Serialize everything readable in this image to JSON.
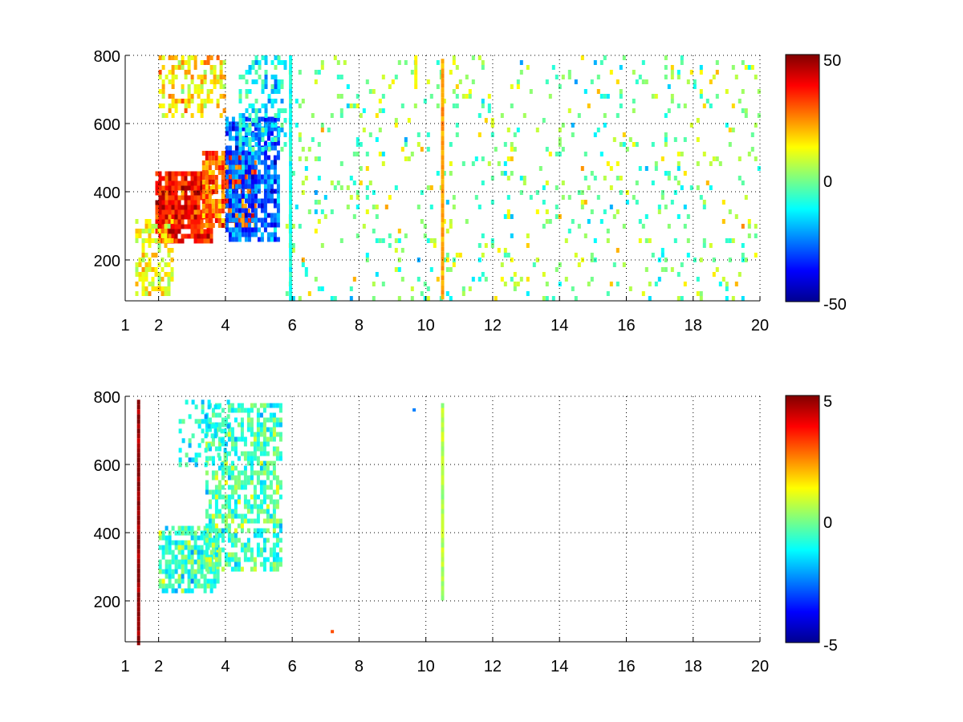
{
  "figure": {
    "background": "#ffffff"
  },
  "colormap": "jet",
  "chart_data": [
    {
      "type": "heatmap",
      "name": "top-panel",
      "title": "",
      "xlabel": "",
      "ylabel": "",
      "xlim": [
        1,
        20
      ],
      "ylim": [
        80,
        800
      ],
      "x_ticks": [
        1,
        2,
        4,
        6,
        8,
        10,
        12,
        14,
        16,
        18,
        20
      ],
      "x_tick_labels": [
        "1",
        "2",
        "4",
        "6",
        "8",
        "10",
        "12",
        "14",
        "16",
        "18",
        "20"
      ],
      "y_ticks": [
        200,
        400,
        600,
        800
      ],
      "y_tick_labels": [
        "200",
        "400",
        "600",
        "800"
      ],
      "grid": true,
      "grid_style": "dotted",
      "colorbar": {
        "min": -50,
        "max": 50,
        "tick_labels": [
          "50",
          "0",
          "-50"
        ],
        "ticks": [
          50,
          0,
          -50
        ]
      },
      "clusters": [
        {
          "x": [
            1.9,
            3.6
          ],
          "y": [
            260,
            460
          ],
          "value": 35,
          "spread": 12,
          "density": 0.9
        },
        {
          "x": [
            3.3,
            4.9
          ],
          "y": [
            300,
            520
          ],
          "value": 28,
          "spread": 14,
          "density": 0.8
        },
        {
          "x": [
            4.0,
            5.6
          ],
          "y": [
            260,
            620
          ],
          "value": -28,
          "spread": 12,
          "density": 0.75
        },
        {
          "x": [
            1.3,
            2.4
          ],
          "y": [
            100,
            320
          ],
          "value": 12,
          "spread": 10,
          "density": 0.55
        },
        {
          "x": [
            2.0,
            4.0
          ],
          "y": [
            620,
            800
          ],
          "value": 15,
          "spread": 12,
          "density": 0.5
        },
        {
          "x": [
            4.4,
            5.8
          ],
          "y": [
            520,
            800
          ],
          "value": -12,
          "spread": 14,
          "density": 0.45
        },
        {
          "x": [
            5.8,
            20.0
          ],
          "y": [
            80,
            800
          ],
          "value": 0,
          "spread": 16,
          "density": 0.09
        }
      ],
      "stripes": [
        {
          "x": 10.5,
          "y": [
            90,
            790
          ],
          "value": 22
        },
        {
          "x": 9.7,
          "y": [
            710,
            800
          ],
          "value": 12
        },
        {
          "x": 5.95,
          "y": [
            80,
            800
          ],
          "value": -10
        }
      ]
    },
    {
      "type": "heatmap",
      "name": "bottom-panel",
      "title": "",
      "xlabel": "",
      "ylabel": "",
      "xlim": [
        1,
        20
      ],
      "ylim": [
        80,
        800
      ],
      "x_ticks": [
        1,
        2,
        4,
        6,
        8,
        10,
        12,
        14,
        16,
        18,
        20
      ],
      "x_tick_labels": [
        "1",
        "2",
        "4",
        "6",
        "8",
        "10",
        "12",
        "14",
        "16",
        "18",
        "20"
      ],
      "y_ticks": [
        200,
        400,
        600,
        800
      ],
      "y_tick_labels": [
        "200",
        "400",
        "600",
        "800"
      ],
      "grid": true,
      "grid_style": "dotted",
      "colorbar": {
        "min": -5,
        "max": 5,
        "tick_labels": [
          "5",
          "0",
          "-5"
        ],
        "ticks": [
          5,
          0,
          -5
        ]
      },
      "clusters": [
        {
          "x": [
            2.0,
            3.8
          ],
          "y": [
            230,
            420
          ],
          "value": -0.6,
          "spread": 1.2,
          "density": 0.75
        },
        {
          "x": [
            3.4,
            5.7
          ],
          "y": [
            290,
            780
          ],
          "value": -0.5,
          "spread": 1.2,
          "density": 0.6
        },
        {
          "x": [
            2.6,
            4.1
          ],
          "y": [
            600,
            790
          ],
          "value": -1.0,
          "spread": 1.0,
          "density": 0.35
        }
      ],
      "stripes": [
        {
          "x": 1.4,
          "y": [
            80,
            790
          ],
          "value": 4.8
        },
        {
          "x": 10.5,
          "y": [
            205,
            780
          ],
          "value": 0.5
        }
      ],
      "points": [
        {
          "x": 7.2,
          "y": 110,
          "value": 3.0
        },
        {
          "x": 9.65,
          "y": 760,
          "value": -2.5
        }
      ]
    }
  ]
}
